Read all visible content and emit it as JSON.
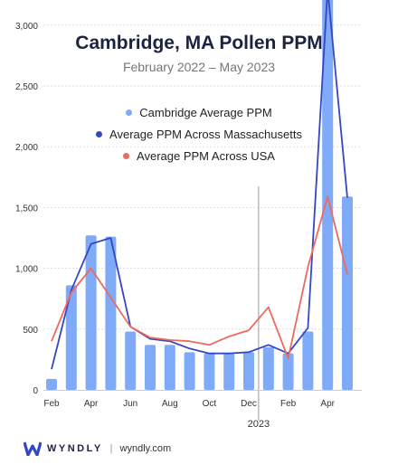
{
  "title": "Cambridge, MA Pollen PPM",
  "subtitle": "February 2022 – May 2023",
  "legend": [
    {
      "label": "Cambridge Average PPM",
      "color": "#7eaaf7"
    },
    {
      "label": "Average PPM Across Massachusetts",
      "color": "#3347c4"
    },
    {
      "label": "Average PPM Across USA",
      "color": "#ee6a5f"
    }
  ],
  "footer": {
    "brand": "WYNDLY",
    "site": "wyndly.com"
  },
  "chart_data": {
    "type": "bar",
    "categories": [
      "Feb 2022",
      "Mar 2022",
      "Apr 2022",
      "May 2022",
      "Jun 2022",
      "Jul 2022",
      "Aug 2022",
      "Sep 2022",
      "Oct 2022",
      "Nov 2022",
      "Dec 2022",
      "Jan 2023",
      "Feb 2023",
      "Mar 2023",
      "Apr 2023",
      "May 2023"
    ],
    "x_tick_labels": [
      "Feb",
      "",
      "Apr",
      "",
      "Jun",
      "",
      "Aug",
      "",
      "Oct",
      "",
      "Dec",
      "",
      "Feb",
      "",
      "Apr",
      ""
    ],
    "year_marker": {
      "label": "2023",
      "after_index": 10
    },
    "y_ticks": [
      "0",
      "500",
      "1,000",
      "1,500",
      "2,000",
      "2,500",
      "3,000"
    ],
    "ylim": [
      0,
      3300
    ],
    "grid": true,
    "legend_position": "top-center",
    "series": [
      {
        "name": "Cambridge Average PPM",
        "type": "bar",
        "color": "#7eaaf7",
        "values": [
          90,
          860,
          1270,
          1260,
          480,
          370,
          370,
          310,
          300,
          300,
          310,
          350,
          300,
          480,
          3230,
          1590
        ]
      },
      {
        "name": "Average PPM Across Massachusetts",
        "type": "line",
        "color": "#3347c4",
        "values": [
          170,
          820,
          1200,
          1250,
          520,
          420,
          400,
          340,
          300,
          300,
          310,
          370,
          300,
          510,
          3300,
          1580
        ]
      },
      {
        "name": "Average PPM Across USA",
        "type": "line",
        "color": "#ee6a5f",
        "values": [
          400,
          800,
          1000,
          760,
          520,
          430,
          410,
          400,
          370,
          440,
          490,
          680,
          260,
          1010,
          1590,
          950
        ]
      }
    ]
  }
}
